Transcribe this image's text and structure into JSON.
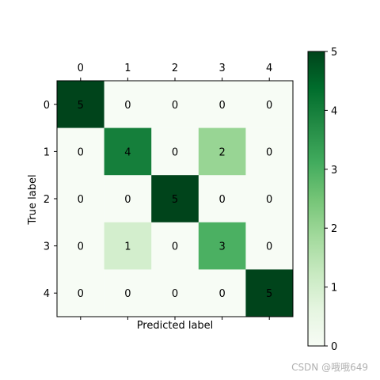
{
  "chart_data": {
    "type": "heatmap",
    "title": "",
    "xlabel": "Predicted label",
    "ylabel": "True label",
    "x_ticks": [
      "0",
      "1",
      "2",
      "3",
      "4"
    ],
    "y_ticks": [
      "0",
      "1",
      "2",
      "3",
      "4"
    ],
    "x_tick_position": "top",
    "matrix": [
      [
        5,
        0,
        0,
        0,
        0
      ],
      [
        0,
        4,
        0,
        2,
        0
      ],
      [
        0,
        0,
        5,
        0,
        0
      ],
      [
        0,
        1,
        0,
        3,
        0
      ],
      [
        0,
        0,
        0,
        0,
        5
      ]
    ],
    "vmin": 0,
    "vmax": 5,
    "colormap": "Greens",
    "colorbar": {
      "ticks": [
        0,
        1,
        2,
        3,
        4,
        5
      ],
      "position": "right",
      "colors": [
        "#f7fcf5",
        "#e5f5e0",
        "#c7e9c0",
        "#a1d99b",
        "#74c476",
        "#41ab5d",
        "#238b45",
        "#006d2c",
        "#00441b"
      ]
    },
    "grid": false
  },
  "watermark": "CSDN @哦哦649"
}
